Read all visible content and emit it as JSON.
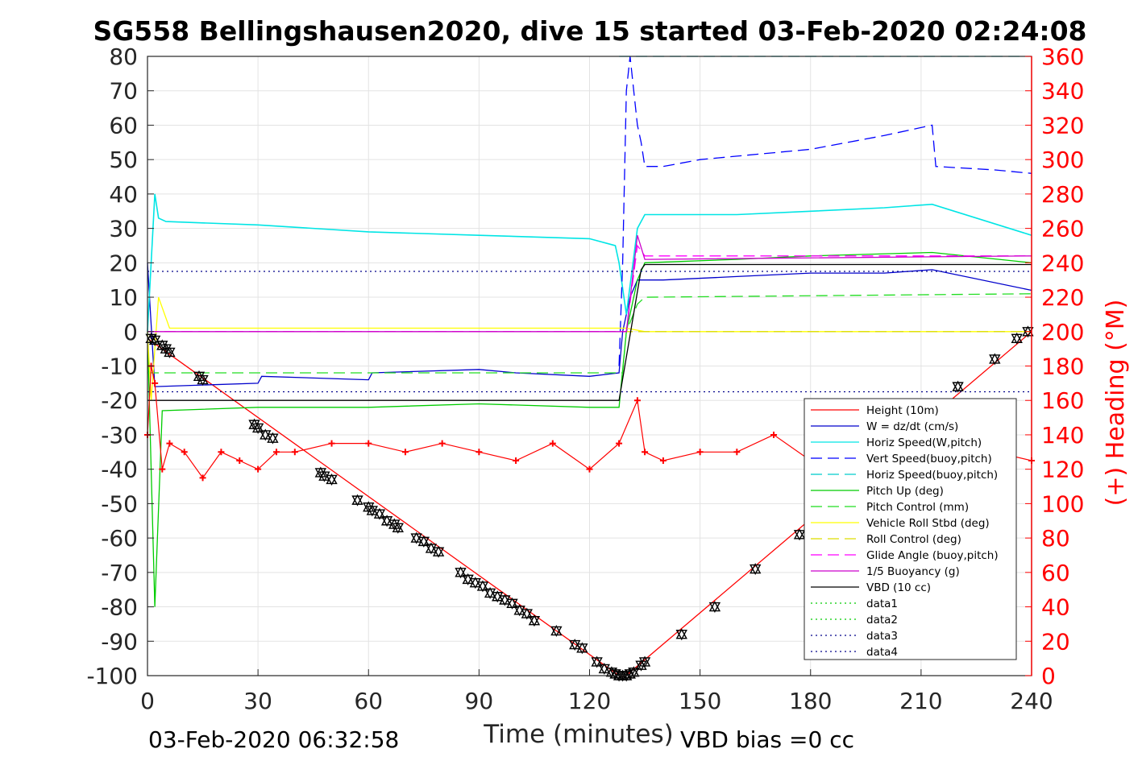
{
  "chart_data": {
    "type": "line",
    "title": "SG558 Bellingshausen2020, dive 15 started 03-Feb-2020 02:24:08",
    "xlabel": "Time (minutes)",
    "ylabel_left": "",
    "ylabel_right": "(+) Heading (°M)",
    "xlim": [
      0,
      240
    ],
    "ylim_left": [
      -100,
      80
    ],
    "ylim_right": [
      0,
      360
    ],
    "xticks": [
      "0",
      "30",
      "60",
      "90",
      "120",
      "150",
      "180",
      "210",
      "240"
    ],
    "yticks_left": [
      "80",
      "70",
      "60",
      "50",
      "40",
      "30",
      "20",
      "10",
      "0",
      "-10",
      "-20",
      "-30",
      "-40",
      "-50",
      "-60",
      "-70",
      "-80",
      "-90",
      "-100"
    ],
    "yticks_right": [
      "360",
      "340",
      "320",
      "300",
      "280",
      "260",
      "240",
      "220",
      "200",
      "180",
      "160",
      "140",
      "120",
      "100",
      "80",
      "60",
      "40",
      "20",
      "0"
    ],
    "grid": true,
    "legend_position": "bottom-right",
    "footer_left": "03-Feb-2020 06:32:58",
    "footer_right": "VBD bias =0 cc",
    "colors": {
      "height": "#ff0000",
      "w": "#0000cc",
      "horiz_w": "#00e5e5",
      "vert_buoy": "#0000ff",
      "horiz_buoy": "#00cccc",
      "pitch": "#00cc00",
      "pitch_ctrl": "#22dd22",
      "roll": "#ffff00",
      "roll_ctrl": "#dddd00",
      "glide": "#ff00ff",
      "buoy": "#cc00cc",
      "vbd": "#000000",
      "heading": "#ff0000",
      "right_axis": "#ff0000"
    },
    "series": [
      {
        "name": "Height (10m)",
        "style": "solid",
        "x": [
          0,
          128,
          129,
          130,
          131,
          240
        ],
        "y": [
          -2,
          -100,
          -100.3,
          -100,
          -99,
          0
        ]
      },
      {
        "name": "W = dz/dt (cm/s)",
        "style": "solid",
        "x": [
          0,
          2,
          30,
          31,
          60,
          61,
          90,
          100,
          120,
          128,
          129,
          130,
          131,
          133,
          135,
          140,
          160,
          180,
          200,
          213,
          240
        ],
        "y": [
          20,
          -16,
          -15,
          -13,
          -14,
          -12,
          -11,
          -12,
          -13,
          -12,
          0,
          5,
          10,
          15,
          15,
          15,
          16,
          17,
          17,
          18,
          12
        ]
      },
      {
        "name": "Horiz Speed(W,pitch)",
        "style": "solid",
        "x": [
          0,
          2,
          3,
          5,
          30,
          60,
          90,
          120,
          127,
          128,
          130,
          133,
          135,
          160,
          180,
          200,
          213,
          240
        ],
        "y": [
          0,
          40,
          33,
          32,
          31,
          29,
          28,
          27,
          25,
          20,
          5,
          30,
          34,
          34,
          35,
          36,
          37,
          28
        ]
      },
      {
        "name": "Vert Speed(buoy,pitch)",
        "style": "dashed",
        "x": [
          128,
          129,
          130,
          131,
          133,
          134,
          135,
          140,
          150,
          160,
          180,
          200,
          213,
          214,
          230,
          240
        ],
        "y": [
          -10,
          20,
          70,
          80,
          60,
          55,
          48,
          48,
          50,
          51,
          53,
          57,
          60,
          48,
          47,
          46
        ]
      },
      {
        "name": "Horiz Speed(buoy,pitch)",
        "style": "dashed",
        "x": [
          128,
          240
        ],
        "y": [
          80,
          80
        ]
      },
      {
        "name": "Pitch Up (deg)",
        "style": "solid",
        "x": [
          0,
          2,
          4,
          30,
          60,
          90,
          120,
          128,
          130,
          133,
          135,
          160,
          180,
          213,
          240
        ],
        "y": [
          0,
          -80,
          -23,
          -22,
          -22,
          -21,
          -22,
          -22,
          0,
          15,
          20,
          21,
          22,
          23,
          20
        ]
      },
      {
        "name": "Pitch Control (mm)",
        "style": "dashed",
        "x": [
          0,
          129,
          130,
          133,
          135,
          240
        ],
        "y": [
          -12,
          -12,
          0,
          8,
          10,
          11
        ]
      },
      {
        "name": "Vehicle Roll Stbd (deg)",
        "style": "solid",
        "x": [
          0,
          1,
          3,
          6,
          130,
          135,
          240
        ],
        "y": [
          0,
          -20,
          10,
          1,
          1,
          0,
          0
        ]
      },
      {
        "name": "Roll Control (deg)",
        "style": "dashed",
        "x": [
          0,
          240
        ],
        "y": [
          0,
          0
        ]
      },
      {
        "name": "Glide Angle (buoy,pitch)",
        "style": "dashed",
        "x": [
          0,
          128,
          130,
          133,
          135,
          240
        ],
        "y": [
          0,
          0,
          0,
          25,
          22,
          22
        ]
      },
      {
        "name": "1/5 Buoyancy (g)",
        "style": "solid",
        "x": [
          0,
          128,
          130,
          133,
          135,
          240
        ],
        "y": [
          0,
          0,
          0,
          28,
          21,
          22
        ]
      },
      {
        "name": "VBD (10 cc)",
        "style": "solid",
        "x": [
          0,
          128,
          134,
          135,
          240
        ],
        "y": [
          -20,
          -20,
          18,
          19.5,
          19.5
        ]
      },
      {
        "name": "data1",
        "style": "dotted",
        "x": [],
        "y": []
      },
      {
        "name": "data2",
        "style": "dotted",
        "x": [],
        "y": []
      },
      {
        "name": "data3",
        "style": "dotted",
        "x": [
          0,
          240
        ],
        "y": [
          17.5,
          17.5
        ]
      },
      {
        "name": "data4",
        "style": "dotted",
        "x": [
          0,
          240
        ],
        "y": [
          -17.5,
          -17.5
        ]
      }
    ],
    "heading": {
      "axis": "right",
      "x": [
        0,
        1,
        2,
        4,
        6,
        10,
        15,
        20,
        25,
        30,
        35,
        40,
        50,
        60,
        70,
        80,
        90,
        100,
        110,
        120,
        128,
        133,
        135,
        140,
        150,
        160,
        170,
        180,
        190,
        200,
        210,
        220,
        230,
        240
      ],
      "y": [
        140,
        180,
        170,
        120,
        135,
        130,
        115,
        130,
        125,
        120,
        130,
        130,
        135,
        135,
        130,
        135,
        130,
        125,
        135,
        120,
        135,
        160,
        130,
        125,
        130,
        130,
        140,
        125,
        130,
        140,
        125,
        120,
        130,
        125
      ]
    },
    "depth_markers": {
      "x": [
        1,
        2,
        4,
        5,
        6,
        14,
        15,
        29,
        30,
        32,
        34,
        47,
        48,
        50,
        57,
        60,
        61,
        63,
        65,
        67,
        68,
        73,
        75,
        77,
        79,
        85,
        87,
        89,
        91,
        93,
        95,
        97,
        99,
        101,
        103,
        105,
        111,
        116,
        118,
        122,
        124,
        126,
        127,
        128,
        129,
        130,
        131,
        132,
        134,
        135,
        145,
        154,
        165,
        177,
        220,
        230,
        236,
        239
      ],
      "y": [
        -2,
        -2.5,
        -4,
        -5,
        -6,
        -13,
        -14,
        -27,
        -28,
        -30,
        -31,
        -41,
        -42,
        -43,
        -49,
        -51,
        -52,
        -53,
        -55,
        -56,
        -57,
        -60,
        -61,
        -63,
        -64,
        -70,
        -72,
        -73,
        -74,
        -76,
        -77,
        -78,
        -79,
        -81,
        -82,
        -84,
        -87,
        -91,
        -92,
        -96,
        -98,
        -99,
        -99.5,
        -100,
        -100,
        -100,
        -99.5,
        -99,
        -97,
        -96,
        -88,
        -80,
        -69,
        -59,
        -16,
        -8,
        -2,
        0
      ]
    }
  }
}
